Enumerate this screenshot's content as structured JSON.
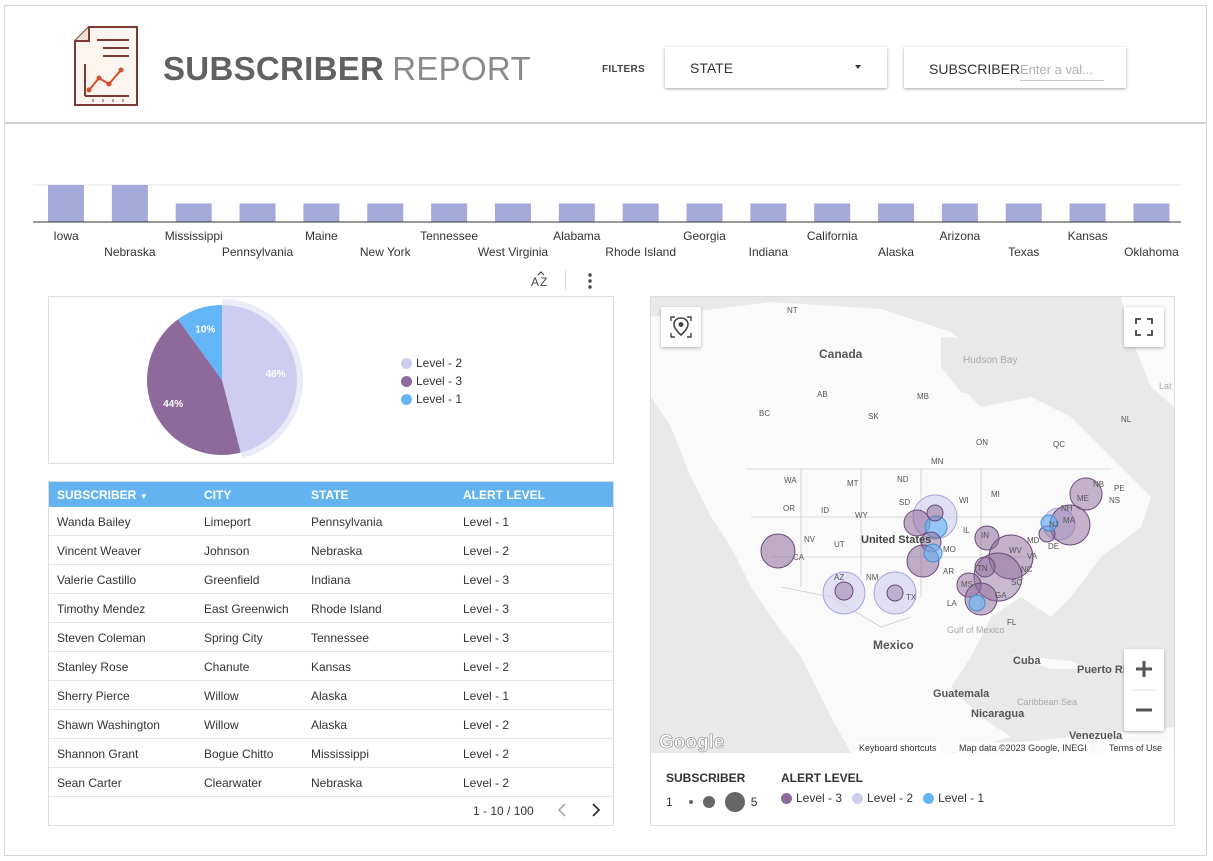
{
  "header": {
    "title_bold": "SUBSCRIBER",
    "title_light": "REPORT",
    "filters_label": "FILTERS",
    "state_filter_label": "STATE",
    "subscriber_filter_label": "SUBSCRIBER",
    "subscriber_filter_placeholder": "Enter a val..."
  },
  "chart_data": [
    {
      "type": "bar",
      "categories": [
        "Iowa",
        "Nebraska",
        "Mississippi",
        "Pennsylvania",
        "Maine",
        "New York",
        "Tennessee",
        "West Virginia",
        "Alabama",
        "Rhode Island",
        "Georgia",
        "Indiana",
        "California",
        "Alaska",
        "Arizona",
        "Texas",
        "Kansas",
        "Oklahoma"
      ],
      "values": [
        2,
        2,
        1,
        1,
        1,
        1,
        1,
        1,
        1,
        1,
        1,
        1,
        1,
        1,
        1,
        1,
        1,
        1
      ],
      "ylim": [
        0,
        2
      ],
      "colors": {
        "bar": "#a3aad9"
      }
    },
    {
      "type": "pie",
      "slices": [
        {
          "label": "Level - 2",
          "value": 46,
          "text": "46%",
          "color": "#cfcdef"
        },
        {
          "label": "Level - 3",
          "value": 44,
          "text": "44%",
          "color": "#8d6a9b"
        },
        {
          "label": "Level - 1",
          "value": 10,
          "text": "10%",
          "color": "#64b5f6"
        }
      ]
    }
  ],
  "table": {
    "columns": [
      "SUBSCRIBER",
      "CITY",
      "STATE",
      "ALERT LEVEL"
    ],
    "rows": [
      [
        "Wanda Bailey",
        "Limeport",
        "Pennsylvania",
        "Level - 1"
      ],
      [
        "Vincent Weaver",
        "Johnson",
        "Nebraska",
        "Level - 2"
      ],
      [
        "Valerie Castillo",
        "Greenfield",
        "Indiana",
        "Level - 3"
      ],
      [
        "Timothy Mendez",
        "East Greenwich",
        "Rhode Island",
        "Level - 3"
      ],
      [
        "Steven Coleman",
        "Spring City",
        "Tennessee",
        "Level - 3"
      ],
      [
        "Stanley Rose",
        "Chanute",
        "Kansas",
        "Level - 2"
      ],
      [
        "Sherry Pierce",
        "Willow",
        "Alaska",
        "Level - 1"
      ],
      [
        "Shawn Washington",
        "Willow",
        "Alaska",
        "Level - 2"
      ],
      [
        "Shannon Grant",
        "Bogue Chitto",
        "Mississippi",
        "Level - 2"
      ],
      [
        "Sean Carter",
        "Clearwater",
        "Nebraska",
        "Level - 2"
      ]
    ],
    "pagination": "1 - 10 / 100"
  },
  "map": {
    "labels": {
      "canada": "Canada",
      "hudson": "Hudson Bay",
      "mexico": "Mexico",
      "cuba": "Cuba",
      "guatemala": "Guatemala",
      "nicaragua": "Nicaragua",
      "venezuela": "Venezuela",
      "us": "United States",
      "puerto_rico": "Puerto Rico",
      "gulf": "Gulf of Mexico",
      "caribbean": "Caribbean Sea",
      "nt": "NT",
      "ab": "AB",
      "bc": "BC",
      "sk": "SK",
      "mb": "MB",
      "on": "ON",
      "qc": "QC",
      "nl": "NL",
      "wa": "WA",
      "or": "OR",
      "ca": "CA",
      "nv": "NV",
      "id": "ID",
      "mt": "MT",
      "wy": "WY",
      "ut": "UT",
      "az": "AZ",
      "nm": "NM",
      "tx": "TX",
      "nd": "ND",
      "sd": "SD",
      "mn": "MN",
      "wi": "WI",
      "mi": "MI",
      "il": "IL",
      "in": "IN",
      "oh": "OH",
      "ky": "KY",
      "tn": "TN",
      "ms": "MS",
      "al": "AL",
      "ga": "GA",
      "fl": "FL",
      "la": "LA",
      "ar": "AR",
      "mo": "MO",
      "ks": "KS",
      "ne": "NE",
      "ok": "OK",
      "ia": "IA",
      "wv": "WV",
      "va": "VA",
      "nc": "NC",
      "sc": "SC",
      "pa": "PA",
      "ny": "NY",
      "me": "ME",
      "ma": "MA",
      "nh": "NH",
      "nb": "NB",
      "ns": "NS",
      "pe": "PE",
      "de": "DE",
      "md": "MD",
      "nj": "NJ",
      "lat": "Lat"
    },
    "attribution": "Keyboard shortcuts",
    "map_data": "Map data ©2023 Google, INEGI",
    "terms": "Terms of Use",
    "google": "Google",
    "legend": {
      "subscriber_title": "SUBSCRIBER",
      "min": "1",
      "max": "5",
      "alert_title": "ALERT LEVEL",
      "levels": [
        {
          "label": "Level - 3",
          "color": "#8d6a9b"
        },
        {
          "label": "Level - 2",
          "color": "#cfcdef"
        },
        {
          "label": "Level - 1",
          "color": "#64b5f6"
        }
      ]
    }
  }
}
